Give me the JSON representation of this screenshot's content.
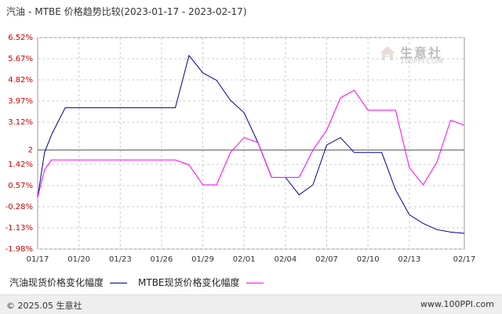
{
  "title": {
    "product": "汽油",
    "separator": "-",
    "compare": "MTBE",
    "label": "价格趋势比较",
    "range": "(2023-01-17 - 2023-02-17)"
  },
  "watermark": {
    "text": "生意社",
    "sub": "100PPI.COM"
  },
  "legend": {
    "items": [
      {
        "label": "汽油现货价格变化幅度",
        "color": "#00008b"
      },
      {
        "label": "MTBE现货价格变化幅度",
        "color": "#ff00ff"
      }
    ]
  },
  "footer": {
    "left": "© 2025.05 生意社",
    "right": "www.100PPI.com"
  },
  "chart_data": {
    "type": "line",
    "y_ticks": [
      "6.52%",
      "5.67%",
      "4.82%",
      "3.97%",
      "3.12%",
      "2",
      "1.42%",
      "0.57%",
      "-0.28%",
      "-1.13%",
      "-1.98%"
    ],
    "y_tick_values": [
      6.52,
      5.67,
      4.82,
      3.97,
      3.12,
      2.0,
      1.42,
      0.57,
      -0.28,
      -1.13,
      -1.98
    ],
    "ylim": [
      -1.98,
      6.52
    ],
    "x_ticks": [
      "01/17",
      "01/20",
      "01/23",
      "01/26",
      "01/29",
      "02/01",
      "02/04",
      "02/07",
      "02/10",
      "02/13",
      "02/17"
    ],
    "x_tick_days": [
      0,
      3,
      6,
      9,
      12,
      15,
      18,
      21,
      24,
      27,
      31
    ],
    "reference_line": 2.0,
    "xlabel": "",
    "ylabel": "",
    "series": [
      {
        "name": "汽油现货价格变化幅度",
        "color": "#00008b",
        "x": [
          0,
          0.5,
          1,
          2,
          3,
          4,
          5,
          6,
          7,
          8,
          9,
          10,
          11,
          12,
          13,
          14,
          15,
          16,
          17,
          18,
          19,
          20,
          21,
          22,
          23,
          24,
          25,
          26,
          27,
          28,
          29,
          30,
          31
        ],
        "y": [
          0.1,
          1.9,
          2.6,
          3.7,
          3.7,
          3.7,
          3.7,
          3.7,
          3.7,
          3.7,
          3.7,
          3.7,
          5.8,
          5.1,
          4.8,
          4.0,
          3.5,
          2.3,
          0.9,
          0.9,
          0.2,
          0.6,
          2.2,
          2.5,
          1.9,
          1.9,
          1.9,
          0.4,
          -0.6,
          -0.95,
          -1.2,
          -1.3,
          -1.35
        ]
      },
      {
        "name": "MTBE现货价格变化幅度",
        "color": "#ff00ff",
        "x": [
          0,
          0.5,
          1,
          2,
          3,
          4,
          5,
          6,
          7,
          8,
          9,
          10,
          11,
          12,
          13,
          14,
          15,
          16,
          17,
          18,
          19,
          20,
          21,
          22,
          23,
          24,
          25,
          26,
          27,
          28,
          29,
          30,
          31
        ],
        "y": [
          0.1,
          1.2,
          1.6,
          1.6,
          1.6,
          1.6,
          1.6,
          1.6,
          1.6,
          1.6,
          1.6,
          1.6,
          1.4,
          0.6,
          0.6,
          1.9,
          2.5,
          2.3,
          0.9,
          0.9,
          0.9,
          2.0,
          2.8,
          4.1,
          4.4,
          3.6,
          3.6,
          3.6,
          1.3,
          0.6,
          1.5,
          3.2,
          3.0
        ]
      }
    ]
  }
}
